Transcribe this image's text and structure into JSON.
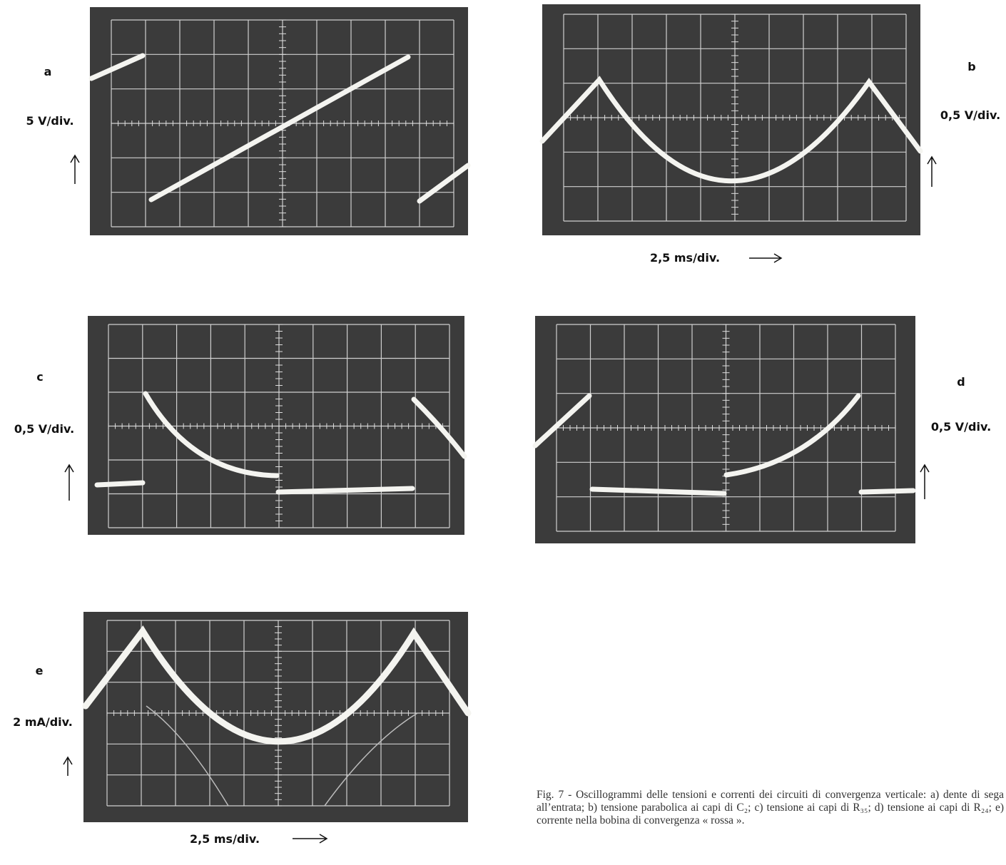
{
  "panels": [
    {
      "letter": "a",
      "scale": "5 V/div."
    },
    {
      "letter": "b",
      "scale": "0,5 V/div."
    },
    {
      "letter": "c",
      "scale": "0,5 V/div."
    },
    {
      "letter": "d",
      "scale": "0,5 V/div."
    },
    {
      "letter": "e",
      "scale": "2 mA/div."
    }
  ],
  "time_scale": "2,5 ms/div.",
  "caption": "Fig. 7 - Oscillogrammi delle tensioni e correnti dei circuiti di convergenza verticale: a) dente di sega all’entrata; b) tensione parabolica ai capi di C₂; c) tensione ai capi di R₃₅; d) tensione ai capi di R₂₄; e) corrente nella bobina di convergenza « rossa »."
}
